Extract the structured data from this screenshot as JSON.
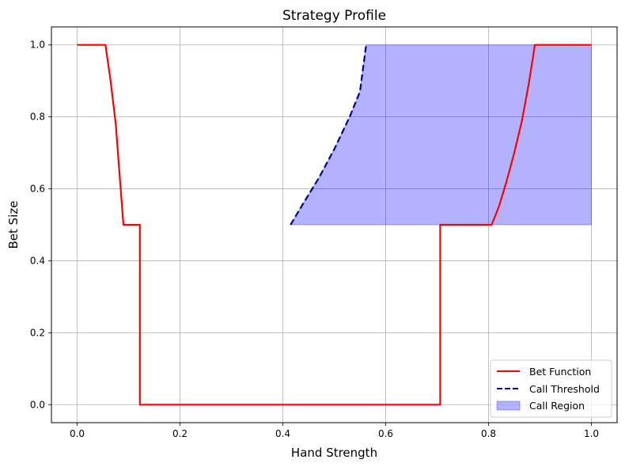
{
  "chart_data": {
    "type": "line",
    "title": "Strategy Profile",
    "xlabel": "Hand Strength",
    "ylabel": "Bet Size",
    "xlim": [
      -0.05,
      1.05
    ],
    "ylim": [
      -0.05,
      1.05
    ],
    "xticks": [
      0.0,
      0.2,
      0.4,
      0.6,
      0.8,
      1.0
    ],
    "yticks": [
      0.0,
      0.2,
      0.4,
      0.6,
      0.8,
      1.0
    ],
    "xtick_labels": [
      "0.0",
      "0.2",
      "0.4",
      "0.6",
      "0.8",
      "1.0"
    ],
    "ytick_labels": [
      "0.0",
      "0.2",
      "0.4",
      "0.6",
      "0.8",
      "1.0"
    ],
    "grid": true,
    "legend_position": "bottom-right",
    "series": [
      {
        "name": "Bet Function",
        "style": "solid",
        "color": "#ff0000",
        "points": [
          [
            0.0,
            1.0
          ],
          [
            0.055,
            1.0
          ],
          [
            0.065,
            0.9
          ],
          [
            0.075,
            0.78
          ],
          [
            0.09,
            0.5
          ],
          [
            0.122,
            0.5
          ],
          [
            0.122,
            0.0
          ],
          [
            0.706,
            0.0
          ],
          [
            0.706,
            0.5
          ],
          [
            0.806,
            0.5
          ],
          [
            0.82,
            0.55
          ],
          [
            0.835,
            0.62
          ],
          [
            0.85,
            0.7
          ],
          [
            0.865,
            0.79
          ],
          [
            0.878,
            0.89
          ],
          [
            0.888,
            0.98
          ],
          [
            0.89,
            1.0
          ],
          [
            1.0,
            1.0
          ]
        ]
      },
      {
        "name": "Call Threshold",
        "style": "dashed",
        "color": "#00008b",
        "points": [
          [
            0.415,
            0.5
          ],
          [
            0.44,
            0.56
          ],
          [
            0.47,
            0.63
          ],
          [
            0.5,
            0.71
          ],
          [
            0.53,
            0.8
          ],
          [
            0.55,
            0.87
          ],
          [
            0.562,
            1.0
          ]
        ]
      }
    ],
    "fill_region": {
      "name": "Call Region",
      "color": "#0000ff",
      "alpha": 0.3,
      "points": [
        [
          0.415,
          0.5
        ],
        [
          0.44,
          0.56
        ],
        [
          0.47,
          0.63
        ],
        [
          0.5,
          0.71
        ],
        [
          0.53,
          0.8
        ],
        [
          0.55,
          0.87
        ],
        [
          0.562,
          1.0
        ],
        [
          1.0,
          1.0
        ],
        [
          1.0,
          0.5
        ]
      ]
    }
  }
}
